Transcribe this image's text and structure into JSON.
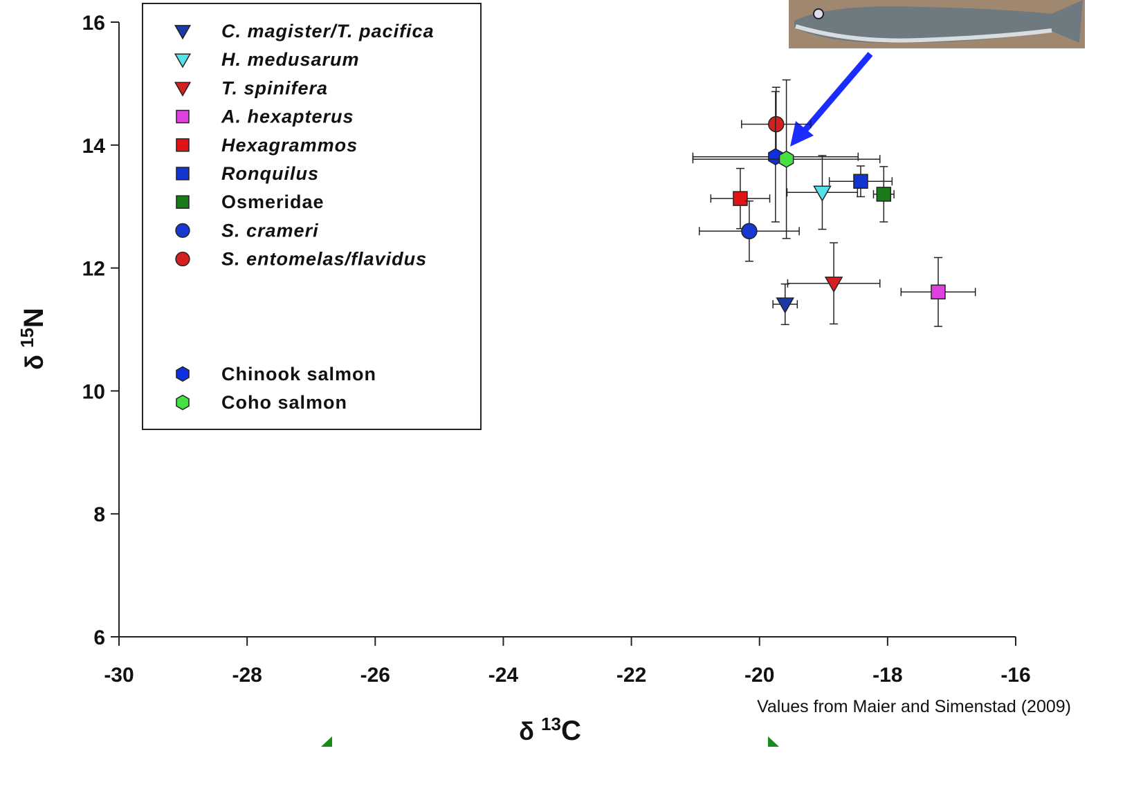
{
  "chart_data": {
    "type": "scatter",
    "xlabel": {
      "symbol": "δ",
      "sup": "13",
      "text": "C"
    },
    "ylabel": {
      "symbol": "δ",
      "sup": "15",
      "text": "N"
    },
    "annotation": "Values from Maier and Simenstad (2009)",
    "xlim": [
      -30,
      -16
    ],
    "xticks": [
      -30,
      -28,
      -26,
      -24,
      -22,
      -20,
      -18,
      -16
    ],
    "ylim": [
      6,
      16
    ],
    "yticks": [
      6,
      8,
      10,
      12,
      14,
      16
    ],
    "series": [
      {
        "name": "C. magister/T. pacifica",
        "italic": true,
        "marker": "triangle-down",
        "color": "#1a3aa8",
        "x": [
          -19.6
        ],
        "values": [
          11.41
        ],
        "xerr": [
          0.19
        ],
        "yerr": [
          0.33
        ]
      },
      {
        "name": "H. medusarum",
        "italic": true,
        "marker": "triangle-down",
        "color": "#55e0ea",
        "x": [
          -19.02
        ],
        "values": [
          13.23
        ],
        "xerr": [
          0.55
        ],
        "yerr": [
          0.6
        ]
      },
      {
        "name": "T. spinifera",
        "italic": true,
        "marker": "triangle-down",
        "color": "#d42020",
        "x": [
          -18.84
        ],
        "values": [
          11.75
        ],
        "xerr": [
          0.72
        ],
        "yerr": [
          0.66
        ]
      },
      {
        "name": "A. hexapterus",
        "italic": true,
        "marker": "square",
        "color": "#e040e0",
        "x": [
          -17.21
        ],
        "values": [
          11.61
        ],
        "xerr": [
          0.58
        ],
        "yerr": [
          0.56
        ]
      },
      {
        "name": "Hexagrammos",
        "italic": true,
        "marker": "square",
        "color": "#e01414",
        "x": [
          -20.3
        ],
        "values": [
          13.13
        ],
        "xerr": [
          0.46
        ],
        "yerr": [
          0.49
        ]
      },
      {
        "name": "Ronquilus",
        "italic": true,
        "marker": "square",
        "color": "#1434d0",
        "x": [
          -18.42
        ],
        "values": [
          13.41
        ],
        "xerr": [
          0.49
        ],
        "yerr": [
          0.25
        ]
      },
      {
        "name": "Osmeridae",
        "italic": false,
        "marker": "square",
        "color": "#1a7a1a",
        "x": [
          -18.06
        ],
        "values": [
          13.2
        ],
        "xerr": [
          0.16
        ],
        "yerr": [
          0.45
        ]
      },
      {
        "name": "S. crameri",
        "italic": true,
        "marker": "circle",
        "color": "#1838d0",
        "x": [
          -20.16
        ],
        "values": [
          12.6
        ],
        "xerr": [
          0.78
        ],
        "yerr": [
          0.49
        ]
      },
      {
        "name": "S. entomelas/flavidus",
        "italic": true,
        "marker": "circle",
        "color": "#d42020",
        "x": [
          -19.74
        ],
        "values": [
          14.34
        ],
        "xerr": [
          0.54
        ],
        "yerr": [
          0.6
        ]
      },
      {
        "name": "Chinook salmon",
        "italic": false,
        "marker": "hexagon",
        "color": "#1030e0",
        "x": [
          -19.75
        ],
        "values": [
          13.81
        ],
        "xerr": [
          1.29
        ],
        "yerr": [
          1.06
        ]
      },
      {
        "name": "Coho salmon",
        "italic": false,
        "marker": "hexagon",
        "color": "#44e044",
        "x": [
          -19.58
        ],
        "values": [
          13.77
        ],
        "xerr": [
          1.46
        ],
        "yerr": [
          1.29
        ]
      }
    ]
  }
}
